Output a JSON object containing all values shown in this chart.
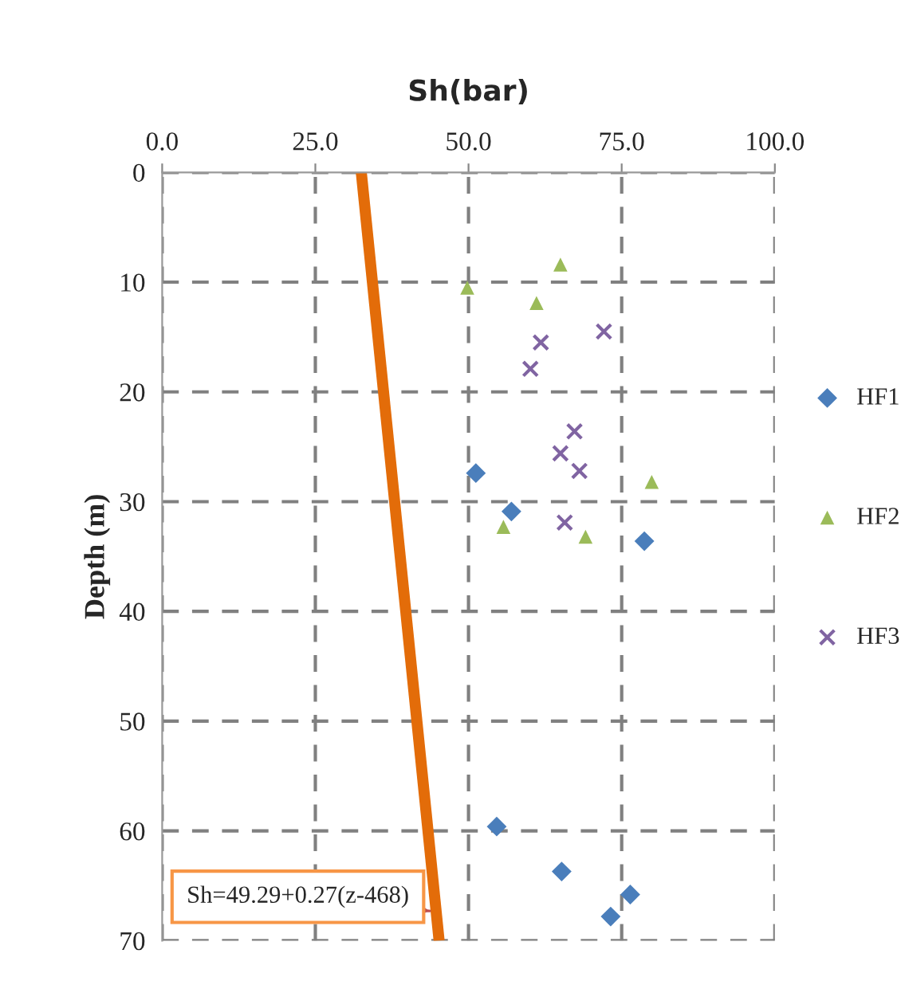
{
  "chart_data": {
    "type": "scatter",
    "xlabel": "Sh(bar)",
    "ylabel": "Depth (m)",
    "xlim": [
      0,
      100
    ],
    "xticks": [
      {
        "value": 0,
        "label": "0.0"
      },
      {
        "value": 25,
        "label": "25.0"
      },
      {
        "value": 50,
        "label": "50.0"
      },
      {
        "value": 75,
        "label": "75.0"
      },
      {
        "value": 100,
        "label": "100.0"
      }
    ],
    "ylim": [
      70,
      0
    ],
    "yticks": [
      0,
      10,
      20,
      30,
      40,
      50,
      60,
      70
    ],
    "grid": true,
    "legend": "right",
    "series": [
      {
        "name": "HF1",
        "color": "#4a7ebb",
        "marker": "diamond",
        "x": [
          51.2,
          57.0,
          78.7,
          54.6,
          65.2,
          76.4,
          73.2
        ],
        "values": [
          27.4,
          30.9,
          33.6,
          59.6,
          63.7,
          65.8,
          67.8
        ]
      },
      {
        "name": "HF2",
        "color": "#9bbb59",
        "marker": "triangle",
        "x": [
          65.0,
          49.8,
          61.1,
          79.9,
          55.7,
          69.1
        ],
        "values": [
          8.4,
          10.5,
          11.9,
          28.2,
          32.3,
          33.2
        ]
      },
      {
        "name": "HF3",
        "color": "#8064a2",
        "marker": "cross",
        "x": [
          72.1,
          61.8,
          60.1,
          67.3,
          65.0,
          68.1,
          65.7
        ],
        "values": [
          14.5,
          15.5,
          17.9,
          23.6,
          25.6,
          27.2,
          31.9
        ]
      },
      {
        "type": "line",
        "color": "#e36c09",
        "marker": "none",
        "x": [
          32.5,
          45.2
        ],
        "values": [
          0,
          70
        ]
      }
    ],
    "annotations": [
      {
        "text": "Sh=49.29+0.27(z-468)",
        "x": 43.7,
        "y": 67.3
      }
    ]
  }
}
